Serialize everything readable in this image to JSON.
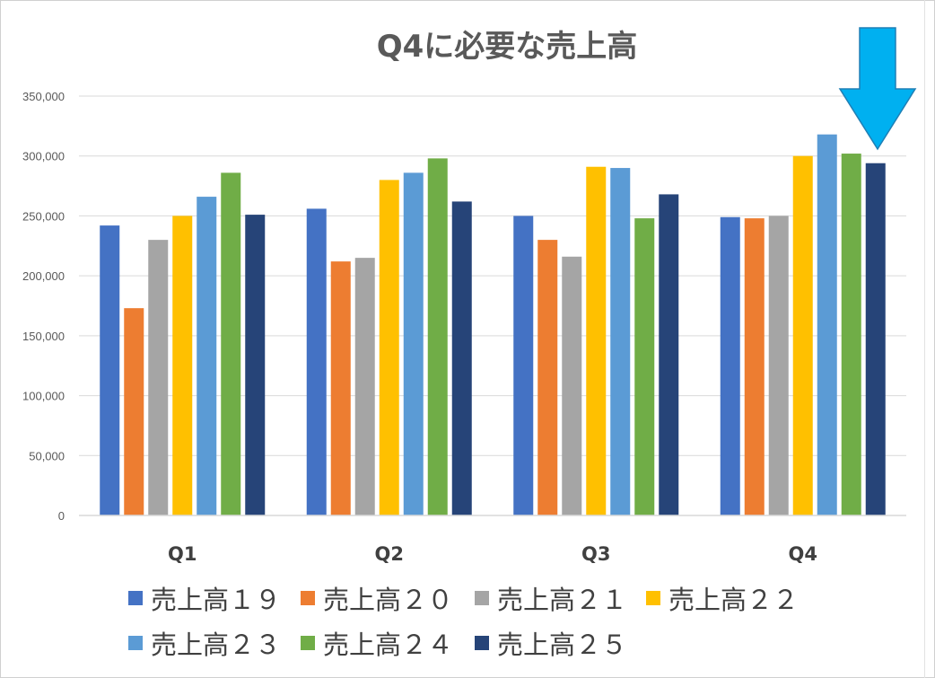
{
  "chart_data": {
    "type": "bar",
    "title": "Q4に必要な売上高",
    "categories": [
      "Q1",
      "Q2",
      "Q3",
      "Q4"
    ],
    "ylim": [
      0,
      350000
    ],
    "yticks": [
      "0",
      "50,000",
      "100,000",
      "150,000",
      "200,000",
      "250,000",
      "300,000",
      "350,000"
    ],
    "grid": true,
    "legend_position": "bottom",
    "series": [
      {
        "name": "売上高１９",
        "color": "#4472C4",
        "values": [
          242000,
          256000,
          250000,
          249000
        ]
      },
      {
        "name": "売上高２０",
        "color": "#ED7D31",
        "values": [
          173000,
          212000,
          230000,
          248000
        ]
      },
      {
        "name": "売上高２１",
        "color": "#A5A5A5",
        "values": [
          230000,
          215000,
          216000,
          250000
        ]
      },
      {
        "name": "売上高２２",
        "color": "#FFC000",
        "values": [
          250000,
          280000,
          291000,
          300000
        ]
      },
      {
        "name": "売上高２３",
        "color": "#5B9BD5",
        "values": [
          266000,
          286000,
          290000,
          318000
        ]
      },
      {
        "name": "売上高２４",
        "color": "#70AD47",
        "values": [
          286000,
          298000,
          248000,
          302000
        ]
      },
      {
        "name": "売上高２５",
        "color": "#264478",
        "values": [
          251000,
          262000,
          268000,
          294000
        ]
      }
    ],
    "annotations": [
      {
        "type": "arrow",
        "direction": "down",
        "color": "#00B0F0",
        "points_to": "Q4 売上高２５"
      }
    ]
  }
}
